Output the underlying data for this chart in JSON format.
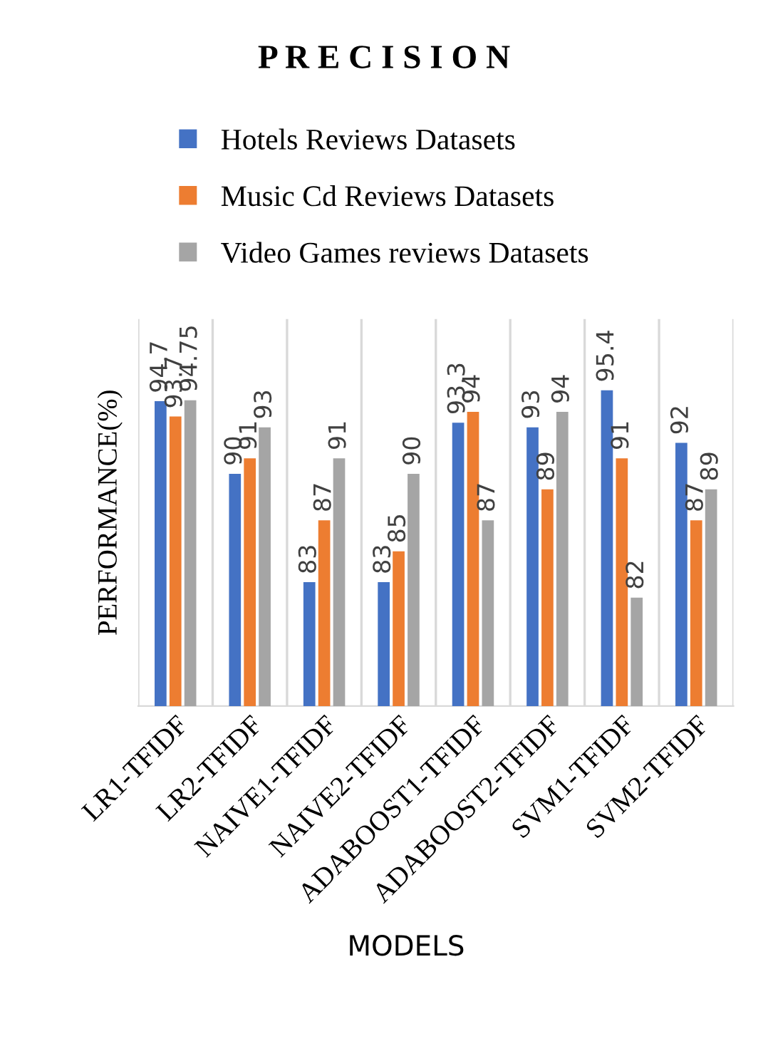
{
  "chart_data": {
    "type": "bar",
    "title": "P R E C I S I O N",
    "xlabel": "MODELS",
    "ylabel": "PERFORMANCE(%)",
    "categories": [
      "LR1-TFIDF",
      "LR2-TFIDF",
      "NAIVE1-TFIDF",
      "NAIVE2-TFIDF",
      "ADABOOST1-TFIDF",
      "ADABOOST2-TFIDF",
      "SVM1-TFIDF",
      "SVM2-TFIDF"
    ],
    "series": [
      {
        "name": "Hotels Reviews Datasets",
        "color": "#4472c4",
        "values": [
          94.7,
          90,
          83,
          83,
          93.3,
          93,
          95.4,
          92
        ]
      },
      {
        "name": "Music Cd Reviews Datasets",
        "color": "#ed7d31",
        "values": [
          93.7,
          91,
          87,
          85,
          94,
          89,
          91,
          87
        ]
      },
      {
        "name": "Video Games reviews Datasets",
        "color": "#a5a5a5",
        "values": [
          94.75,
          93,
          91,
          90,
          87,
          94,
          82,
          89
        ]
      }
    ],
    "ylim": [
      75,
      100
    ],
    "data_labels": true,
    "grid": "x",
    "legend": "top",
    "tick_labels": "x"
  }
}
